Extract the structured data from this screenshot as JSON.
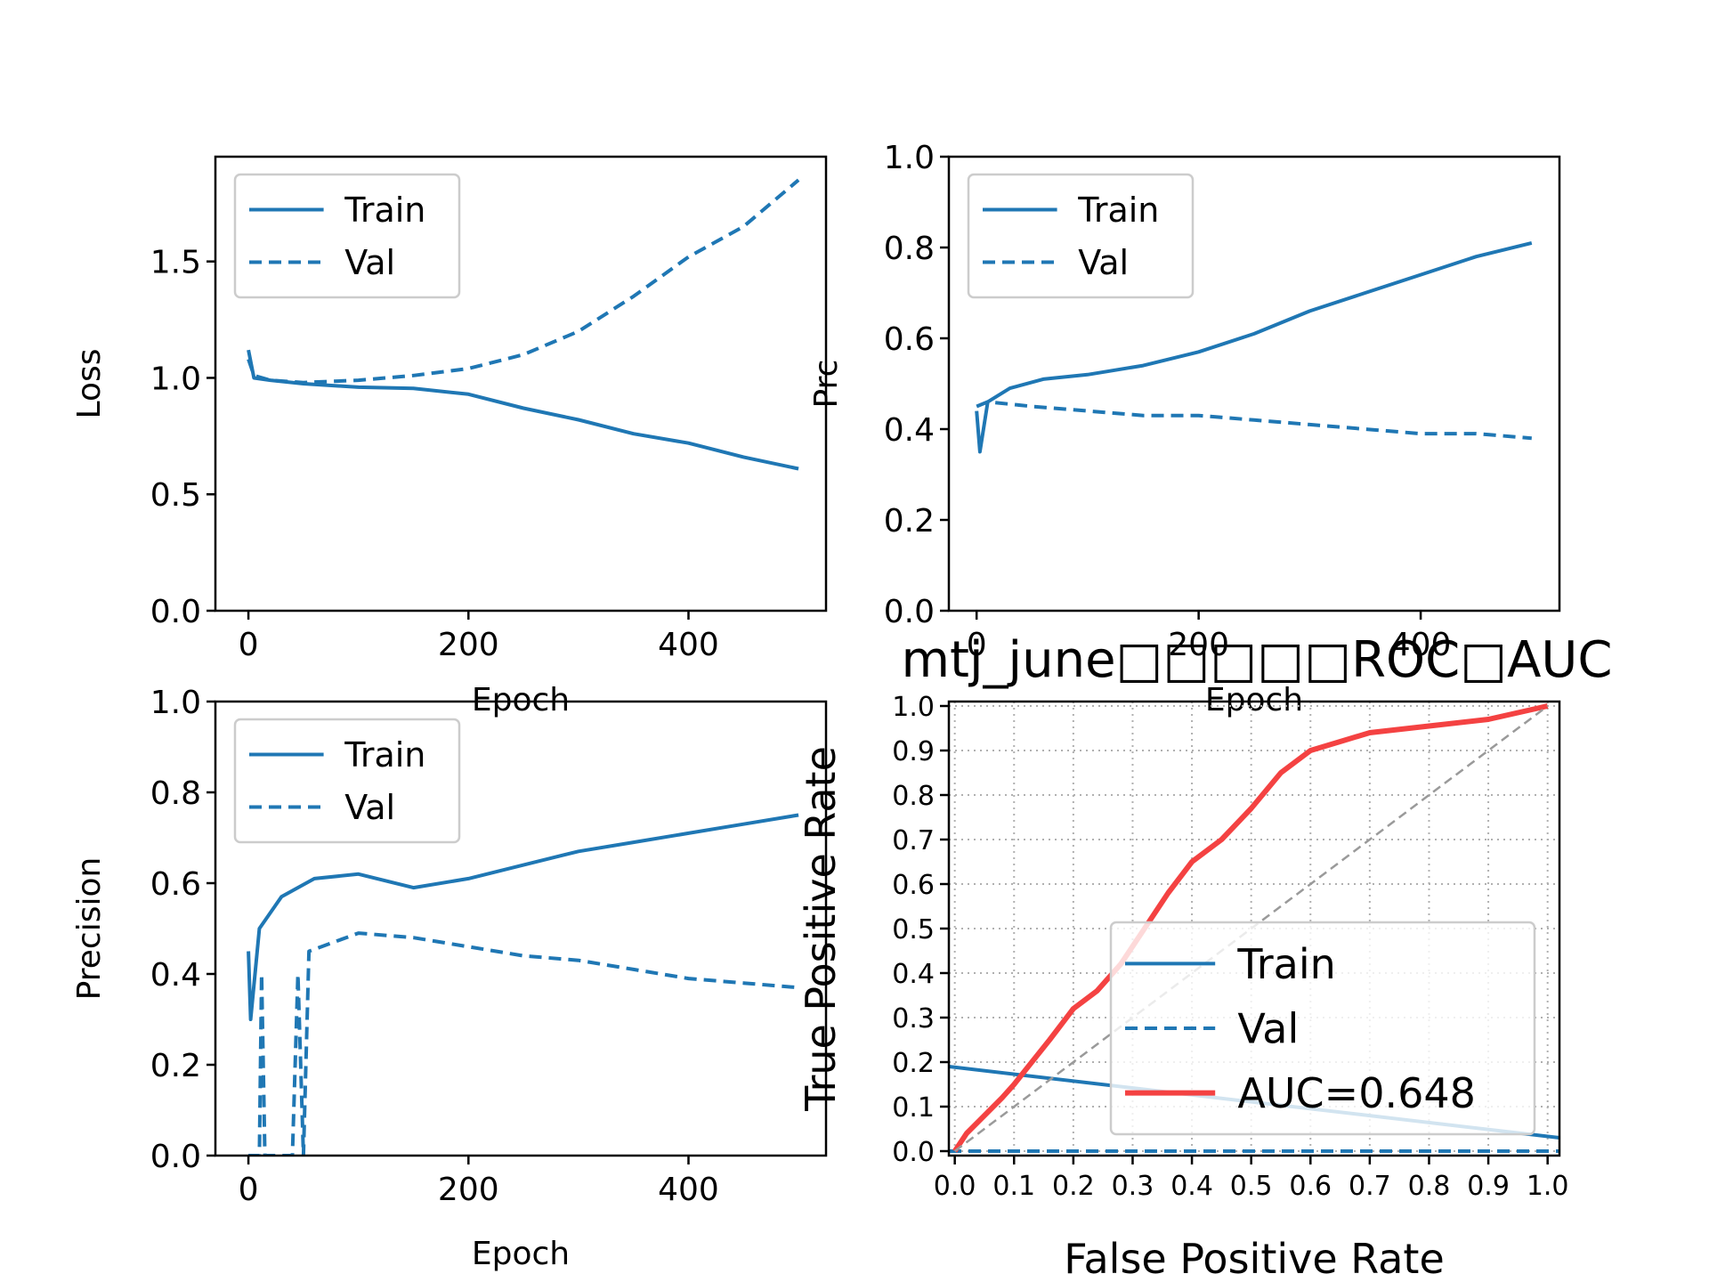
{
  "colors": {
    "series": "#1f77b4",
    "auc": "#f44242",
    "diagonal": "#9a9a9a",
    "grid": "#b0b0b0",
    "axis": "#000000",
    "legend_border": "#cccccc"
  },
  "chart_data": [
    {
      "id": "loss",
      "type": "line",
      "xlabel": "Epoch",
      "ylabel": "Loss",
      "xlim": [
        -30,
        525
      ],
      "ylim": [
        0,
        1.95
      ],
      "xticks": [
        0,
        200,
        400
      ],
      "yticks": [
        0.0,
        0.5,
        1.0,
        1.5
      ],
      "ytick_labels": [
        "0.0",
        "0.5",
        "1.0",
        "1.5"
      ],
      "grid": false,
      "legend": {
        "position": "upper-left",
        "entries": [
          "Train",
          "Val"
        ]
      },
      "series": [
        {
          "name": "Train",
          "style": "solid",
          "x": [
            0,
            5,
            20,
            50,
            100,
            150,
            200,
            250,
            300,
            350,
            400,
            450,
            500
          ],
          "values": [
            1.12,
            1.0,
            0.99,
            0.975,
            0.96,
            0.955,
            0.93,
            0.87,
            0.82,
            0.76,
            0.72,
            0.66,
            0.61
          ]
        },
        {
          "name": "Val",
          "style": "dashed",
          "x": [
            0,
            5,
            20,
            50,
            100,
            150,
            200,
            250,
            300,
            350,
            400,
            450,
            500
          ],
          "values": [
            1.08,
            1.01,
            0.99,
            0.98,
            0.99,
            1.01,
            1.04,
            1.1,
            1.2,
            1.35,
            1.52,
            1.65,
            1.85
          ]
        }
      ]
    },
    {
      "id": "prc",
      "type": "line",
      "xlabel": "Epoch",
      "ylabel": "Prc",
      "xlim": [
        -25,
        525
      ],
      "ylim": [
        0,
        1.0
      ],
      "xticks": [
        0,
        200,
        400
      ],
      "yticks": [
        0.0,
        0.2,
        0.4,
        0.6,
        0.8,
        1.0
      ],
      "ytick_labels": [
        "0.0",
        "0.2",
        "0.4",
        "0.6",
        "0.8",
        "1.0"
      ],
      "grid": false,
      "legend": {
        "position": "upper-left",
        "entries": [
          "Train",
          "Val"
        ]
      },
      "series": [
        {
          "name": "Train",
          "style": "solid",
          "x": [
            0,
            3,
            10,
            30,
            60,
            100,
            150,
            200,
            250,
            300,
            350,
            400,
            450,
            500
          ],
          "values": [
            0.44,
            0.35,
            0.46,
            0.49,
            0.51,
            0.52,
            0.54,
            0.57,
            0.61,
            0.66,
            0.7,
            0.74,
            0.78,
            0.81
          ]
        },
        {
          "name": "Val",
          "style": "dashed",
          "x": [
            0,
            10,
            50,
            100,
            150,
            200,
            250,
            300,
            350,
            400,
            450,
            500
          ],
          "values": [
            0.45,
            0.46,
            0.45,
            0.44,
            0.43,
            0.43,
            0.42,
            0.41,
            0.4,
            0.39,
            0.39,
            0.38
          ]
        }
      ]
    },
    {
      "id": "precision",
      "type": "line",
      "xlabel": "Epoch",
      "ylabel": "Precision",
      "xlim": [
        -30,
        525
      ],
      "ylim": [
        0,
        1.0
      ],
      "xticks": [
        0,
        200,
        400
      ],
      "yticks": [
        0.0,
        0.2,
        0.4,
        0.6,
        0.8,
        1.0
      ],
      "ytick_labels": [
        "0.0",
        "0.2",
        "0.4",
        "0.6",
        "0.8",
        "1.0"
      ],
      "grid": false,
      "legend": {
        "position": "upper-left",
        "entries": [
          "Train",
          "Val"
        ]
      },
      "series": [
        {
          "name": "Train",
          "style": "solid",
          "x": [
            0,
            2,
            10,
            30,
            60,
            100,
            150,
            200,
            250,
            300,
            350,
            400,
            450,
            500
          ],
          "values": [
            0.45,
            0.3,
            0.5,
            0.57,
            0.61,
            0.62,
            0.59,
            0.61,
            0.64,
            0.67,
            0.69,
            0.71,
            0.73,
            0.75
          ]
        },
        {
          "name": "Val",
          "style": "dashed",
          "x": [
            0,
            10,
            12,
            15,
            40,
            45,
            50,
            55,
            100,
            150,
            200,
            250,
            300,
            350,
            400,
            450,
            500
          ],
          "values": [
            0.0,
            0.0,
            0.4,
            0.0,
            0.0,
            0.4,
            0.0,
            0.45,
            0.49,
            0.48,
            0.46,
            0.44,
            0.43,
            0.41,
            0.39,
            0.38,
            0.37
          ]
        }
      ]
    },
    {
      "id": "roc",
      "type": "line",
      "title": "mtj_june□□□□□ROC□AUC",
      "xlabel": "False Positive Rate",
      "ylabel": "True Positive Rate",
      "xlim": [
        -0.01,
        1.02
      ],
      "ylim": [
        -0.01,
        1.01
      ],
      "xticks": [
        0.0,
        0.1,
        0.2,
        0.3,
        0.4,
        0.5,
        0.6,
        0.7,
        0.8,
        0.9,
        1.0
      ],
      "xtick_labels": [
        "0.0",
        "0.1",
        "0.2",
        "0.3",
        "0.4",
        "0.5",
        "0.6",
        "0.7",
        "0.8",
        "0.9",
        "1.0"
      ],
      "yticks": [
        0.0,
        0.1,
        0.2,
        0.3,
        0.4,
        0.5,
        0.6,
        0.7,
        0.8,
        0.9,
        1.0
      ],
      "ytick_labels": [
        "0.0",
        "0.1",
        "0.2",
        "0.3",
        "0.4",
        "0.5",
        "0.6",
        "0.7",
        "0.8",
        "0.9",
        "1.0"
      ],
      "grid": true,
      "legend": {
        "position": "lower-right",
        "entries": [
          "Train",
          "Val",
          "AUC=0.648"
        ]
      },
      "series": [
        {
          "name": "Train",
          "style": "solid",
          "x": [
            -0.01,
            1.02
          ],
          "values": [
            0.19,
            0.03
          ]
        },
        {
          "name": "Val",
          "style": "dashed",
          "x": [
            -0.01,
            1.02
          ],
          "values": [
            0.0,
            0.0
          ]
        },
        {
          "name": "AUC=0.648",
          "style": "solid",
          "x": [
            0.0,
            0.02,
            0.05,
            0.08,
            0.1,
            0.13,
            0.16,
            0.2,
            0.24,
            0.28,
            0.32,
            0.36,
            0.4,
            0.45,
            0.5,
            0.55,
            0.6,
            0.65,
            0.7,
            0.8,
            0.9,
            1.0
          ],
          "values": [
            0.0,
            0.04,
            0.08,
            0.12,
            0.15,
            0.2,
            0.25,
            0.32,
            0.36,
            0.42,
            0.5,
            0.58,
            0.65,
            0.7,
            0.77,
            0.85,
            0.9,
            0.92,
            0.94,
            0.955,
            0.97,
            1.0
          ]
        },
        {
          "name": "chance",
          "style": "dashed",
          "x": [
            0,
            1
          ],
          "values": [
            0,
            1
          ]
        }
      ]
    }
  ]
}
